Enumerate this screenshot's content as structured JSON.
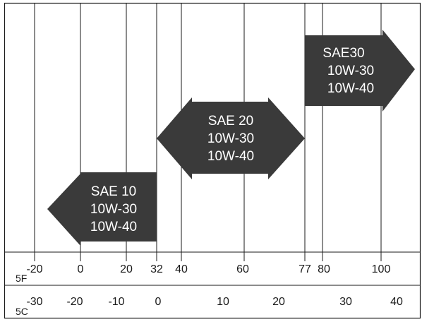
{
  "colors": {
    "arrow": "#3a3a3a",
    "arrow_text": "#ffffff",
    "line": "#1a1a1a",
    "background": "#ffffff"
  },
  "scales": {
    "fahrenheit": {
      "unit": "5F",
      "ticks": [
        "-20",
        "0",
        "20",
        "32",
        "40",
        "60",
        "77",
        "80",
        "100"
      ]
    },
    "celsius": {
      "unit": "5C",
      "ticks": [
        "-30",
        "-20",
        "-10",
        "0",
        "10",
        "20",
        "30",
        "40"
      ]
    }
  },
  "arrows": [
    {
      "lines": [
        "SAE 10",
        "10W-30",
        "10W-40"
      ],
      "shape": "left-pointing"
    },
    {
      "lines": [
        "SAE 20",
        "10W-30",
        "10W-40"
      ],
      "shape": "double-headed"
    },
    {
      "lines": [
        "SAE30",
        "10W-30",
        "10W-40"
      ],
      "shape": "right-pointing"
    }
  ]
}
